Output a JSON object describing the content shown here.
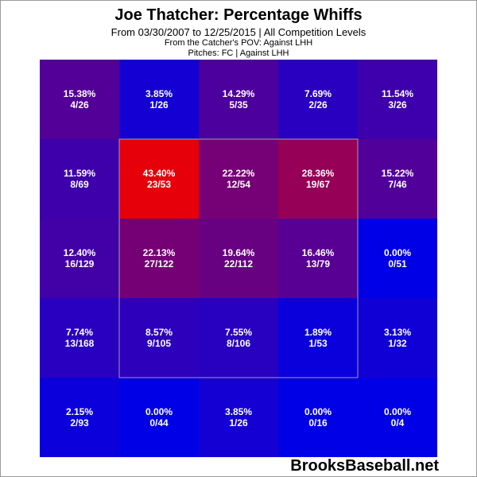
{
  "header": {
    "title": "Joe Thatcher: Percentage Whiffs",
    "subtitle": "From 03/30/2007 to 12/25/2015 | All Competition Levels",
    "pov": "From the Catcher's POV:  Against LHH",
    "pitches": "Pitches:  FC  |  Against LHH"
  },
  "watermark": "BrooksBaseball.net",
  "colors": {
    "low": "#0000ff",
    "high": "#ff0000",
    "cell_text": "#ffffff",
    "strike_zone_border": "#a0a0a0"
  },
  "chart_data": {
    "type": "heatmap",
    "metric": "Percentage Whiffs",
    "rows": 5,
    "cols": 5,
    "strike_zone": {
      "rows": [
        1,
        3
      ],
      "cols": [
        1,
        3
      ]
    },
    "grid": false,
    "cells": [
      [
        {
          "pct": "15.38%",
          "frac": "4/26",
          "value": 15.38
        },
        {
          "pct": "3.85%",
          "frac": "1/26",
          "value": 3.85
        },
        {
          "pct": "14.29%",
          "frac": "5/35",
          "value": 14.29
        },
        {
          "pct": "7.69%",
          "frac": "2/26",
          "value": 7.69
        },
        {
          "pct": "11.54%",
          "frac": "3/26",
          "value": 11.54
        }
      ],
      [
        {
          "pct": "11.59%",
          "frac": "8/69",
          "value": 11.59
        },
        {
          "pct": "43.40%",
          "frac": "23/53",
          "value": 43.4
        },
        {
          "pct": "22.22%",
          "frac": "12/54",
          "value": 22.22
        },
        {
          "pct": "28.36%",
          "frac": "19/67",
          "value": 28.36
        },
        {
          "pct": "15.22%",
          "frac": "7/46",
          "value": 15.22
        }
      ],
      [
        {
          "pct": "12.40%",
          "frac": "16/129",
          "value": 12.4
        },
        {
          "pct": "22.13%",
          "frac": "27/122",
          "value": 22.13
        },
        {
          "pct": "19.64%",
          "frac": "22/112",
          "value": 19.64
        },
        {
          "pct": "16.46%",
          "frac": "13/79",
          "value": 16.46
        },
        {
          "pct": "0.00%",
          "frac": "0/51",
          "value": 0.0
        }
      ],
      [
        {
          "pct": "7.74%",
          "frac": "13/168",
          "value": 7.74
        },
        {
          "pct": "8.57%",
          "frac": "9/105",
          "value": 8.57
        },
        {
          "pct": "7.55%",
          "frac": "8/106",
          "value": 7.55
        },
        {
          "pct": "1.89%",
          "frac": "1/53",
          "value": 1.89
        },
        {
          "pct": "3.13%",
          "frac": "1/32",
          "value": 3.13
        }
      ],
      [
        {
          "pct": "2.15%",
          "frac": "2/93",
          "value": 2.15
        },
        {
          "pct": "0.00%",
          "frac": "0/44",
          "value": 0.0
        },
        {
          "pct": "3.85%",
          "frac": "1/26",
          "value": 3.85
        },
        {
          "pct": "0.00%",
          "frac": "0/16",
          "value": 0.0
        },
        {
          "pct": "0.00%",
          "frac": "0/4",
          "value": 0.0
        }
      ]
    ]
  }
}
